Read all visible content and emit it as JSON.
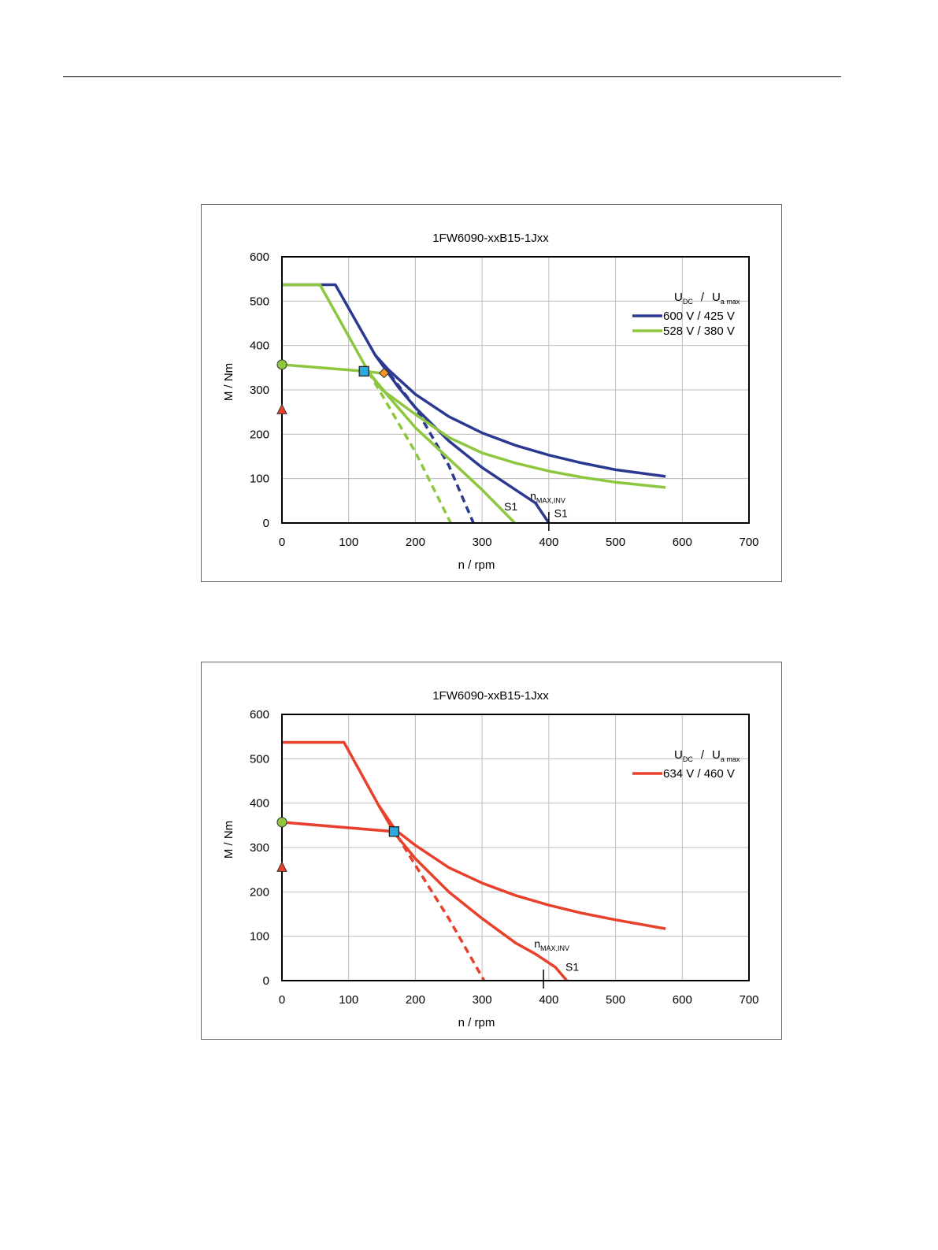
{
  "chart_data": [
    {
      "type": "line",
      "title": "1FW6090-xxB15-1Jxx",
      "xlabel": "n / rpm",
      "ylabel": "M / Nm",
      "xlim": [
        0,
        700
      ],
      "ylim": [
        0,
        600
      ],
      "xticks": [
        0,
        100,
        200,
        300,
        400,
        500,
        600,
        700
      ],
      "yticks": [
        0,
        100,
        200,
        300,
        400,
        500,
        600
      ],
      "grid": true,
      "legend_position": "top-right",
      "legend_header": {
        "u1": "U",
        "u1_sub": "DC",
        "sep": "/",
        "u2": "U",
        "u2_sub": "a max"
      },
      "colors": {
        "blue": "#2b3990",
        "green": "#8dc63f",
        "s1": "#8dc63f",
        "circle": "#8dc63f",
        "triangle": "#e8402a",
        "square": "#29abe2",
        "diamond": "#f7941d"
      },
      "series": [
        {
          "name": "600 V / 425 V",
          "color": "#2b3990",
          "style": "solid",
          "x": [
            0,
            80,
            140,
            160,
            200,
            250,
            300,
            350,
            400,
            450,
            500,
            575
          ],
          "y": [
            537,
            537,
            378,
            345,
            290,
            240,
            203,
            175,
            153,
            135,
            120,
            105
          ]
        },
        {
          "name": "",
          "color": "#2b3990",
          "style": "solid",
          "x": [
            140,
            175,
            200,
            250,
            300,
            350,
            380,
            400
          ],
          "y": [
            378,
            305,
            260,
            185,
            125,
            75,
            45,
            0
          ]
        },
        {
          "name": "",
          "color": "#2b3990",
          "style": "dashed",
          "x": [
            140,
            200,
            250,
            287
          ],
          "y": [
            378,
            260,
            130,
            0
          ]
        },
        {
          "name": "528 V / 380 V",
          "color": "#8dc63f",
          "style": "solid",
          "x": [
            0,
            57,
            130,
            150,
            200,
            250,
            300,
            350,
            400,
            450,
            500,
            575
          ],
          "y": [
            537,
            537,
            340,
            300,
            245,
            193,
            158,
            135,
            117,
            103,
            92,
            80
          ]
        },
        {
          "name": "",
          "color": "#8dc63f",
          "style": "solid",
          "x": [
            130,
            160,
            200,
            250,
            300,
            349
          ],
          "y": [
            340,
            285,
            215,
            145,
            75,
            0
          ]
        },
        {
          "name": "",
          "color": "#8dc63f",
          "style": "dashed",
          "x": [
            130,
            200,
            253
          ],
          "y": [
            340,
            160,
            0
          ]
        },
        {
          "name": "",
          "color": "#8dc63f",
          "style": "solid",
          "x": [
            0,
            123,
            153
          ],
          "y": [
            357,
            342,
            337
          ]
        }
      ],
      "markers": [
        {
          "shape": "circle",
          "color": "#8dc63f",
          "x": 0,
          "y": 357
        },
        {
          "shape": "triangle",
          "color": "#e8402a",
          "x": 0,
          "y": 255
        },
        {
          "shape": "square",
          "color": "#29abe2",
          "x": 123,
          "y": 342
        },
        {
          "shape": "diamond",
          "color": "#f7941d",
          "x": 153,
          "y": 338
        }
      ],
      "vline_x": 400,
      "annotations": [
        {
          "text": "S1",
          "x": 333,
          "y": 28
        },
        {
          "text": "S1",
          "x": 408,
          "y": 13
        },
        {
          "text": "n",
          "sub": "MAX,INV",
          "x": 372,
          "y": 52
        }
      ]
    },
    {
      "type": "line",
      "title": "1FW6090-xxB15-1Jxx",
      "xlabel": "n / rpm",
      "ylabel": "M / Nm",
      "xlim": [
        0,
        700
      ],
      "ylim": [
        0,
        600
      ],
      "xticks": [
        0,
        100,
        200,
        300,
        400,
        500,
        600,
        700
      ],
      "yticks": [
        0,
        100,
        200,
        300,
        400,
        500,
        600
      ],
      "grid": true,
      "legend_position": "top-right",
      "legend_header": {
        "u1": "U",
        "u1_sub": "DC",
        "sep": "/",
        "u2": "U",
        "u2_sub": "a max"
      },
      "colors": {
        "red": "#e8402a",
        "circle": "#8dc63f",
        "triangle": "#e8402a",
        "square": "#29abe2"
      },
      "series": [
        {
          "name": "634 V / 460 V",
          "color": "#e8402a",
          "style": "solid",
          "x": [
            0,
            93,
            145,
            170,
            200,
            250,
            300,
            350,
            400,
            450,
            500,
            575
          ],
          "y": [
            537,
            537,
            395,
            340,
            305,
            255,
            220,
            192,
            170,
            152,
            137,
            117
          ]
        },
        {
          "name": "",
          "color": "#e8402a",
          "style": "solid",
          "x": [
            145,
            170,
            200,
            250,
            300,
            350,
            380,
            410,
            427
          ],
          "y": [
            395,
            330,
            275,
            200,
            140,
            85,
            60,
            30,
            0
          ]
        },
        {
          "name": "",
          "color": "#e8402a",
          "style": "dashed",
          "x": [
            145,
            200,
            250,
            303
          ],
          "y": [
            395,
            260,
            140,
            0
          ]
        },
        {
          "name": "",
          "color": "#e8402a",
          "style": "solid",
          "x": [
            0,
            168
          ],
          "y": [
            357,
            336
          ]
        }
      ],
      "markers": [
        {
          "shape": "circle",
          "color": "#8dc63f",
          "x": 0,
          "y": 357
        },
        {
          "shape": "triangle",
          "color": "#e8402a",
          "x": 0,
          "y": 255
        },
        {
          "shape": "square",
          "color": "#29abe2",
          "x": 168,
          "y": 336
        }
      ],
      "vline_x": 392,
      "annotations": [
        {
          "text": "S1",
          "x": 425,
          "y": 22
        },
        {
          "text": "n",
          "sub": "MAX,INV",
          "x": 378,
          "y": 75
        }
      ]
    }
  ]
}
